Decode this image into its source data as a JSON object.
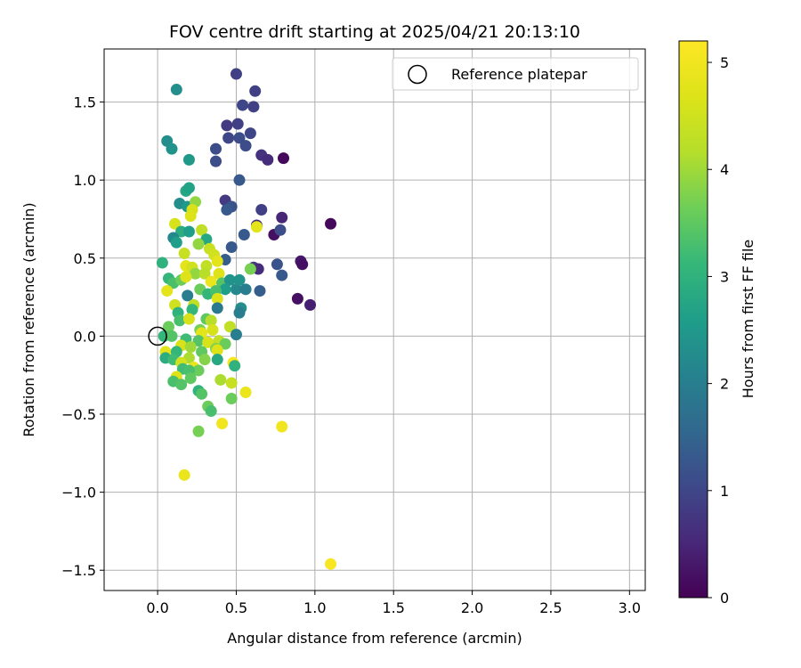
{
  "chart_data": {
    "type": "scatter",
    "title": "FOV centre drift starting at 2025/04/21 20:13:10",
    "xlabel": "Angular distance from reference (arcmin)",
    "ylabel": "Rotation from reference (arcmin)",
    "xlim": [
      -0.34,
      3.1
    ],
    "ylim": [
      -1.63,
      1.84
    ],
    "xticks": [
      0.0,
      0.5,
      1.0,
      1.5,
      2.0,
      2.5,
      3.0
    ],
    "xtick_labels": [
      "0.0",
      "0.5",
      "1.0",
      "1.5",
      "2.0",
      "2.5",
      "3.0"
    ],
    "yticks": [
      -1.5,
      -1.0,
      -0.5,
      0.0,
      0.5,
      1.0,
      1.5
    ],
    "ytick_labels": [
      "−1.5",
      "−1.0",
      "−0.5",
      "0.0",
      "0.5",
      "1.0",
      "1.5"
    ],
    "grid": true,
    "legend": {
      "label": "Reference platepar",
      "position": "top-right"
    },
    "reference_point": {
      "x": 0.0,
      "y": 0.0
    },
    "colorbar": {
      "label": "Hours from first FF file",
      "min": 0,
      "max": 5.2,
      "ticks": [
        0,
        1,
        2,
        3,
        4,
        5
      ],
      "tick_labels": [
        "0",
        "1",
        "2",
        "3",
        "4",
        "5"
      ],
      "colormap": "viridis"
    },
    "series": [
      {
        "points": [
          {
            "x": 0.5,
            "y": 1.68,
            "h": 0.9
          },
          {
            "x": 0.62,
            "y": 1.57,
            "h": 0.9
          },
          {
            "x": 0.54,
            "y": 1.48,
            "h": 1.0
          },
          {
            "x": 0.61,
            "y": 1.47,
            "h": 0.9
          },
          {
            "x": 0.44,
            "y": 1.35,
            "h": 0.8
          },
          {
            "x": 0.51,
            "y": 1.36,
            "h": 0.9
          },
          {
            "x": 0.59,
            "y": 1.3,
            "h": 1.0
          },
          {
            "x": 0.45,
            "y": 1.27,
            "h": 1.0
          },
          {
            "x": 0.52,
            "y": 1.27,
            "h": 1.1
          },
          {
            "x": 0.56,
            "y": 1.22,
            "h": 1.1
          },
          {
            "x": 0.37,
            "y": 1.2,
            "h": 1.1
          },
          {
            "x": 0.37,
            "y": 1.12,
            "h": 1.1
          },
          {
            "x": 0.66,
            "y": 1.16,
            "h": 0.7
          },
          {
            "x": 0.7,
            "y": 1.13,
            "h": 0.6
          },
          {
            "x": 0.8,
            "y": 1.14,
            "h": 0.1
          },
          {
            "x": 0.12,
            "y": 1.58,
            "h": 2.3
          },
          {
            "x": 0.06,
            "y": 1.25,
            "h": 2.3
          },
          {
            "x": 0.09,
            "y": 1.2,
            "h": 2.4
          },
          {
            "x": 0.2,
            "y": 1.13,
            "h": 2.5
          },
          {
            "x": 0.52,
            "y": 1.0,
            "h": 1.3
          },
          {
            "x": 0.43,
            "y": 0.87,
            "h": 0.8
          },
          {
            "x": 0.47,
            "y": 0.83,
            "h": 1.2
          },
          {
            "x": 0.44,
            "y": 0.81,
            "h": 1.3
          },
          {
            "x": 0.66,
            "y": 0.81,
            "h": 0.9
          },
          {
            "x": 0.63,
            "y": 0.71,
            "h": 0.6
          },
          {
            "x": 0.79,
            "y": 0.76,
            "h": 0.5
          },
          {
            "x": 0.74,
            "y": 0.65,
            "h": 0.2
          },
          {
            "x": 0.78,
            "y": 0.68,
            "h": 1.1
          },
          {
            "x": 1.1,
            "y": 0.72,
            "h": 0.1
          },
          {
            "x": 0.55,
            "y": 0.65,
            "h": 1.3
          },
          {
            "x": 0.47,
            "y": 0.57,
            "h": 1.3
          },
          {
            "x": 0.91,
            "y": 0.48,
            "h": 0.3
          },
          {
            "x": 0.92,
            "y": 0.46,
            "h": 0.2
          },
          {
            "x": 0.61,
            "y": 0.44,
            "h": 0.8
          },
          {
            "x": 0.64,
            "y": 0.43,
            "h": 0.6
          },
          {
            "x": 0.76,
            "y": 0.46,
            "h": 1.2
          },
          {
            "x": 0.79,
            "y": 0.39,
            "h": 1.3
          },
          {
            "x": 0.89,
            "y": 0.24,
            "h": 0.2
          },
          {
            "x": 0.97,
            "y": 0.2,
            "h": 0.4
          },
          {
            "x": 0.65,
            "y": 0.29,
            "h": 1.4
          },
          {
            "x": 0.43,
            "y": 0.49,
            "h": 1.4
          },
          {
            "x": 0.18,
            "y": 0.93,
            "h": 2.8
          },
          {
            "x": 0.2,
            "y": 0.95,
            "h": 2.7
          },
          {
            "x": 0.14,
            "y": 0.85,
            "h": 2.3
          },
          {
            "x": 0.19,
            "y": 0.83,
            "h": 2.5
          },
          {
            "x": 0.24,
            "y": 0.86,
            "h": 3.9
          },
          {
            "x": 0.22,
            "y": 0.81,
            "h": 4.6
          },
          {
            "x": 0.21,
            "y": 0.77,
            "h": 4.7
          },
          {
            "x": 0.11,
            "y": 0.72,
            "h": 4.6
          },
          {
            "x": 0.15,
            "y": 0.67,
            "h": 2.9
          },
          {
            "x": 0.2,
            "y": 0.67,
            "h": 2.6
          },
          {
            "x": 0.1,
            "y": 0.63,
            "h": 2.2
          },
          {
            "x": 0.12,
            "y": 0.6,
            "h": 2.6
          },
          {
            "x": 0.28,
            "y": 0.68,
            "h": 4.3
          },
          {
            "x": 0.31,
            "y": 0.62,
            "h": 2.8
          },
          {
            "x": 0.26,
            "y": 0.59,
            "h": 3.9
          },
          {
            "x": 0.33,
            "y": 0.56,
            "h": 4.4
          },
          {
            "x": 0.63,
            "y": 0.7,
            "h": 4.8
          },
          {
            "x": 0.17,
            "y": 0.53,
            "h": 4.4
          },
          {
            "x": 0.36,
            "y": 0.52,
            "h": 4.5
          },
          {
            "x": 0.03,
            "y": 0.47,
            "h": 3.0
          },
          {
            "x": 0.18,
            "y": 0.45,
            "h": 4.8
          },
          {
            "x": 0.22,
            "y": 0.44,
            "h": 4.5
          },
          {
            "x": 0.31,
            "y": 0.45,
            "h": 4.3
          },
          {
            "x": 0.38,
            "y": 0.48,
            "h": 4.8
          },
          {
            "x": 0.59,
            "y": 0.43,
            "h": 3.7
          },
          {
            "x": 0.24,
            "y": 0.4,
            "h": 3.9
          },
          {
            "x": 0.3,
            "y": 0.4,
            "h": 4.2
          },
          {
            "x": 0.39,
            "y": 0.4,
            "h": 4.7
          },
          {
            "x": 0.07,
            "y": 0.37,
            "h": 3.1
          },
          {
            "x": 0.1,
            "y": 0.34,
            "h": 3.3
          },
          {
            "x": 0.15,
            "y": 0.36,
            "h": 3.6
          },
          {
            "x": 0.18,
            "y": 0.38,
            "h": 4.7
          },
          {
            "x": 0.34,
            "y": 0.35,
            "h": 4.9
          },
          {
            "x": 0.41,
            "y": 0.34,
            "h": 3.4
          },
          {
            "x": 0.46,
            "y": 0.36,
            "h": 2.4
          },
          {
            "x": 0.5,
            "y": 0.3,
            "h": 2.2
          },
          {
            "x": 0.52,
            "y": 0.36,
            "h": 2.4
          },
          {
            "x": 0.56,
            "y": 0.3,
            "h": 2.0
          },
          {
            "x": 0.43,
            "y": 0.3,
            "h": 2.6
          },
          {
            "x": 0.27,
            "y": 0.3,
            "h": 3.6
          },
          {
            "x": 0.32,
            "y": 0.27,
            "h": 3.1
          },
          {
            "x": 0.37,
            "y": 0.29,
            "h": 3.3
          },
          {
            "x": 0.06,
            "y": 0.29,
            "h": 4.8
          },
          {
            "x": 0.19,
            "y": 0.26,
            "h": 2.0
          },
          {
            "x": 0.38,
            "y": 0.24,
            "h": 4.7
          },
          {
            "x": 0.23,
            "y": 0.2,
            "h": 4.3
          },
          {
            "x": 0.11,
            "y": 0.2,
            "h": 4.5
          },
          {
            "x": 0.13,
            "y": 0.15,
            "h": 3.0
          },
          {
            "x": 0.22,
            "y": 0.17,
            "h": 3.1
          },
          {
            "x": 0.38,
            "y": 0.18,
            "h": 1.9
          },
          {
            "x": 0.53,
            "y": 0.18,
            "h": 2.3
          },
          {
            "x": 0.52,
            "y": 0.15,
            "h": 2.0
          },
          {
            "x": 0.14,
            "y": 0.1,
            "h": 3.3
          },
          {
            "x": 0.2,
            "y": 0.11,
            "h": 4.6
          },
          {
            "x": 0.31,
            "y": 0.11,
            "h": 3.5
          },
          {
            "x": 0.34,
            "y": 0.1,
            "h": 4.2
          },
          {
            "x": 0.46,
            "y": 0.06,
            "h": 4.3
          },
          {
            "x": 0.07,
            "y": 0.06,
            "h": 3.6
          },
          {
            "x": 0.27,
            "y": 0.04,
            "h": 3.7
          },
          {
            "x": 0.28,
            "y": 0.02,
            "h": 4.8
          },
          {
            "x": 0.35,
            "y": 0.04,
            "h": 4.6
          },
          {
            "x": 0.5,
            "y": 0.01,
            "h": 2.0
          },
          {
            "x": 0.04,
            "y": 0.0,
            "h": 3.1
          },
          {
            "x": 0.09,
            "y": 0.0,
            "h": 3.4
          },
          {
            "x": 0.18,
            "y": -0.02,
            "h": 3.2
          },
          {
            "x": 0.26,
            "y": -0.03,
            "h": 3.4
          },
          {
            "x": 0.32,
            "y": -0.04,
            "h": 4.6
          },
          {
            "x": 0.39,
            "y": -0.03,
            "h": 4.3
          },
          {
            "x": 0.15,
            "y": -0.06,
            "h": 4.6
          },
          {
            "x": 0.21,
            "y": -0.07,
            "h": 4.0
          },
          {
            "x": 0.37,
            "y": -0.08,
            "h": 3.8
          },
          {
            "x": 0.43,
            "y": -0.05,
            "h": 3.6
          },
          {
            "x": 0.05,
            "y": -0.1,
            "h": 4.8
          },
          {
            "x": 0.12,
            "y": -0.1,
            "h": 3.1
          },
          {
            "x": 0.28,
            "y": -0.1,
            "h": 3.5
          },
          {
            "x": 0.38,
            "y": -0.09,
            "h": 4.7
          },
          {
            "x": 0.05,
            "y": -0.14,
            "h": 2.9
          },
          {
            "x": 0.1,
            "y": -0.15,
            "h": 3.2
          },
          {
            "x": 0.2,
            "y": -0.14,
            "h": 4.1
          },
          {
            "x": 0.3,
            "y": -0.15,
            "h": 3.8
          },
          {
            "x": 0.38,
            "y": -0.15,
            "h": 2.8
          },
          {
            "x": 0.48,
            "y": -0.17,
            "h": 5.1
          },
          {
            "x": 0.49,
            "y": -0.19,
            "h": 3.0
          },
          {
            "x": 0.15,
            "y": -0.17,
            "h": 4.5
          },
          {
            "x": 0.23,
            "y": -0.2,
            "h": 4.9
          },
          {
            "x": 0.26,
            "y": -0.22,
            "h": 3.6
          },
          {
            "x": 0.16,
            "y": -0.21,
            "h": 3.2
          },
          {
            "x": 0.2,
            "y": -0.22,
            "h": 3.3
          },
          {
            "x": 0.12,
            "y": -0.26,
            "h": 4.7
          },
          {
            "x": 0.21,
            "y": -0.27,
            "h": 3.5
          },
          {
            "x": 0.1,
            "y": -0.29,
            "h": 3.3
          },
          {
            "x": 0.15,
            "y": -0.31,
            "h": 3.4
          },
          {
            "x": 0.4,
            "y": -0.28,
            "h": 4.1
          },
          {
            "x": 0.47,
            "y": -0.3,
            "h": 4.4
          },
          {
            "x": 0.26,
            "y": -0.35,
            "h": 3.0
          },
          {
            "x": 0.28,
            "y": -0.37,
            "h": 3.4
          },
          {
            "x": 0.56,
            "y": -0.36,
            "h": 4.9
          },
          {
            "x": 0.47,
            "y": -0.4,
            "h": 3.6
          },
          {
            "x": 0.32,
            "y": -0.45,
            "h": 3.6
          },
          {
            "x": 0.34,
            "y": -0.48,
            "h": 3.3
          },
          {
            "x": 0.41,
            "y": -0.56,
            "h": 5.0
          },
          {
            "x": 0.26,
            "y": -0.61,
            "h": 3.7
          },
          {
            "x": 0.79,
            "y": -0.58,
            "h": 5.0
          },
          {
            "x": 0.17,
            "y": -0.89,
            "h": 4.9
          },
          {
            "x": 1.1,
            "y": -1.46,
            "h": 5.1
          }
        ]
      }
    ]
  }
}
